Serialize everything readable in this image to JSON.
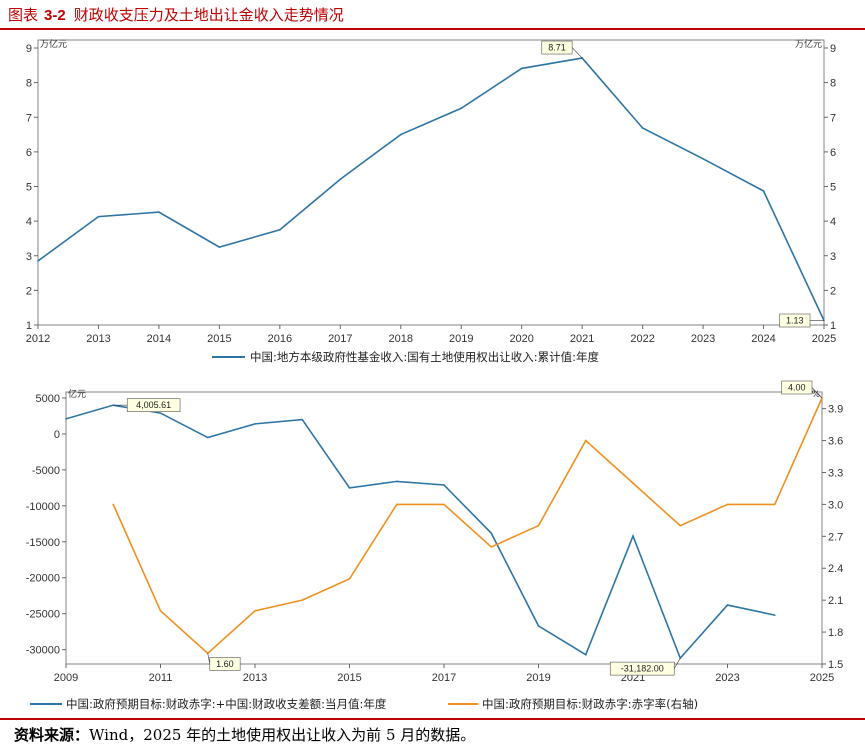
{
  "figure": {
    "label": "图表",
    "number": "3-2",
    "title": "财政收支压力及土地出让金收入走势情况"
  },
  "source": {
    "label": "资料来源：",
    "text": "Wind，2025 年的土地使用权出让收入为前 5 月的数据。"
  },
  "colors": {
    "blue": "#2e75a5",
    "orange": "#f0901e",
    "accent": "#c00000"
  },
  "chart_data": [
    {
      "type": "line",
      "x_categories": [
        "2012",
        "2013",
        "2014",
        "2015",
        "2016",
        "2017",
        "2018",
        "2019",
        "2020",
        "2021",
        "2022",
        "2023",
        "2024",
        "2025"
      ],
      "y_unit_left": "万亿元",
      "y_unit_right": "万亿元",
      "ylim": [
        1,
        9
      ],
      "yticks": [
        1,
        2,
        3,
        4,
        5,
        6,
        7,
        8,
        9
      ],
      "legend_position": "bottom",
      "series": [
        {
          "name": "中国:地方本级政府性基金收入:国有土地使用权出让收入:累计值:年度",
          "color": "#2e75a5",
          "points": [
            [
              "2012",
              2.85
            ],
            [
              "2013",
              4.13
            ],
            [
              "2014",
              4.26
            ],
            [
              "2015",
              3.25
            ],
            [
              "2016",
              3.75
            ],
            [
              "2017",
              5.21
            ],
            [
              "2018",
              6.5
            ],
            [
              "2019",
              7.26
            ],
            [
              "2020",
              8.41
            ],
            [
              "2021",
              8.71
            ],
            [
              "2022",
              6.69
            ],
            [
              "2023",
              5.8
            ],
            [
              "2024",
              4.87
            ],
            [
              "2025",
              1.13
            ]
          ]
        }
      ],
      "annotations": [
        {
          "x": "2021",
          "y": 8.71,
          "text": "8.71"
        },
        {
          "x": "2025",
          "y": 1.13,
          "text": "1.13"
        }
      ]
    },
    {
      "type": "line",
      "x_range": [
        2009,
        2025
      ],
      "x_ticks": [
        "2009",
        "2011",
        "2013",
        "2015",
        "2017",
        "2019",
        "2021",
        "2023",
        "2025"
      ],
      "y_unit_left": "亿元",
      "y_unit_right": "%",
      "ylim_left": [
        -32000,
        5000
      ],
      "yticks_left": [
        5000,
        0,
        -5000,
        -10000,
        -15000,
        -20000,
        -25000,
        -30000
      ],
      "ylim_right": [
        1.5,
        4.0
      ],
      "yticks_right": [
        1.5,
        1.8,
        2.1,
        2.4,
        2.7,
        3.0,
        3.3,
        3.6,
        3.9
      ],
      "legend_position": "bottom",
      "series": [
        {
          "name": "中国:政府预期目标:财政赤字:+中国:财政收支差额:当月值:年度",
          "axis": "left",
          "color": "#2e75a5",
          "points": [
            [
              2009,
              2100
            ],
            [
              2010,
              4005.61
            ],
            [
              2011,
              2900
            ],
            [
              2012,
              -500
            ],
            [
              2013,
              1400
            ],
            [
              2014,
              2000
            ],
            [
              2015,
              -7500
            ],
            [
              2016,
              -6600
            ],
            [
              2017,
              -7100
            ],
            [
              2018,
              -13800
            ],
            [
              2019,
              -26700
            ],
            [
              2020,
              -30700
            ],
            [
              2021,
              -14200
            ],
            [
              2022,
              -31182
            ],
            [
              2023,
              -23800
            ],
            [
              2024,
              -25200
            ]
          ]
        },
        {
          "name": "中国:政府预期目标:财政赤字:赤字率(右轴)",
          "axis": "right",
          "color": "#f0901e",
          "points": [
            [
              2010,
              3.0
            ],
            [
              2011,
              2.0
            ],
            [
              2012,
              1.6
            ],
            [
              2013,
              2.0
            ],
            [
              2014,
              2.1
            ],
            [
              2015,
              2.3
            ],
            [
              2016,
              3.0
            ],
            [
              2017,
              3.0
            ],
            [
              2018,
              2.6
            ],
            [
              2019,
              2.8
            ],
            [
              2020,
              3.6
            ],
            [
              2021,
              3.2
            ],
            [
              2022,
              2.8
            ],
            [
              2023,
              3.0
            ],
            [
              2024,
              3.0
            ],
            [
              2025,
              4.0
            ]
          ]
        }
      ],
      "annotations": [
        {
          "series": 0,
          "x": 2010,
          "y": 4005.61,
          "text": "4,005.61"
        },
        {
          "series": 1,
          "x": 2012,
          "y": 1.6,
          "text": "1.60"
        },
        {
          "series": 0,
          "x": 2022,
          "y": -31182,
          "text": "-31,182.00"
        },
        {
          "series": 1,
          "x": 2025,
          "y": 4.0,
          "text": "4.00"
        }
      ]
    }
  ]
}
